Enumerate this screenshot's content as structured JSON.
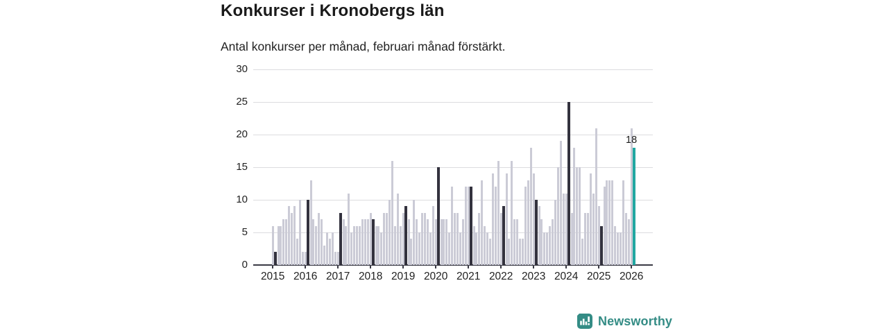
{
  "title": "Konkurser i Kronobergs län",
  "subtitle": "Antal konkurser per månad, februari månad förstärkt.",
  "annotation": {
    "label": "18"
  },
  "branding": {
    "name": "Newsworthy"
  },
  "chart_data": {
    "type": "bar",
    "title": "Konkurser i Kronobergs län",
    "subtitle": "Antal konkurser per månad, februari månad förstärkt.",
    "ylabel": "Antal konkurser per månad",
    "xlabel": "",
    "start_month": "2015-01",
    "end_month": "2026-02",
    "highlight_rule": "february-bars-dark",
    "last_bar_highlight": "teal-current-february",
    "last_value_label": 18,
    "ylim": [
      0,
      30
    ],
    "yticks": [
      0,
      5,
      10,
      15,
      20,
      25,
      30
    ],
    "x_years": [
      2015,
      2016,
      2017,
      2018,
      2019,
      2020,
      2021,
      2022,
      2023,
      2024,
      2025,
      2026
    ],
    "grid": "horizontal",
    "values": [
      6,
      2,
      6,
      6,
      7,
      7,
      9,
      8,
      9,
      4,
      10,
      2,
      2,
      10,
      13,
      7,
      6,
      8,
      7,
      3,
      5,
      4,
      5,
      2,
      2,
      8,
      7,
      6,
      11,
      5,
      6,
      6,
      6,
      7,
      7,
      7,
      8,
      7,
      6,
      6,
      5,
      8,
      8,
      10,
      16,
      6,
      11,
      6,
      8,
      9,
      7,
      4,
      10,
      7,
      5,
      8,
      8,
      7,
      5,
      9,
      7,
      15,
      7,
      7,
      7,
      5,
      12,
      8,
      8,
      5,
      7,
      12,
      12,
      12,
      6,
      5,
      8,
      13,
      6,
      5,
      4,
      14,
      12,
      16,
      8,
      9,
      14,
      4,
      16,
      7,
      7,
      4,
      4,
      12,
      13,
      18,
      14,
      10,
      9,
      7,
      5,
      5,
      6,
      7,
      10,
      15,
      19,
      11,
      11,
      25,
      8,
      18,
      15,
      15,
      4,
      8,
      8,
      14,
      11,
      21,
      9,
      6,
      12,
      13,
      13,
      13,
      6,
      5,
      5,
      13,
      8,
      7,
      21,
      18
    ],
    "colors": {
      "default": "#cbcbd6",
      "february": "#33323e",
      "current": "#21a7a1",
      "gridline": "#dcdcdf",
      "axis": "#3a3a45",
      "brand": "#348C85"
    }
  }
}
